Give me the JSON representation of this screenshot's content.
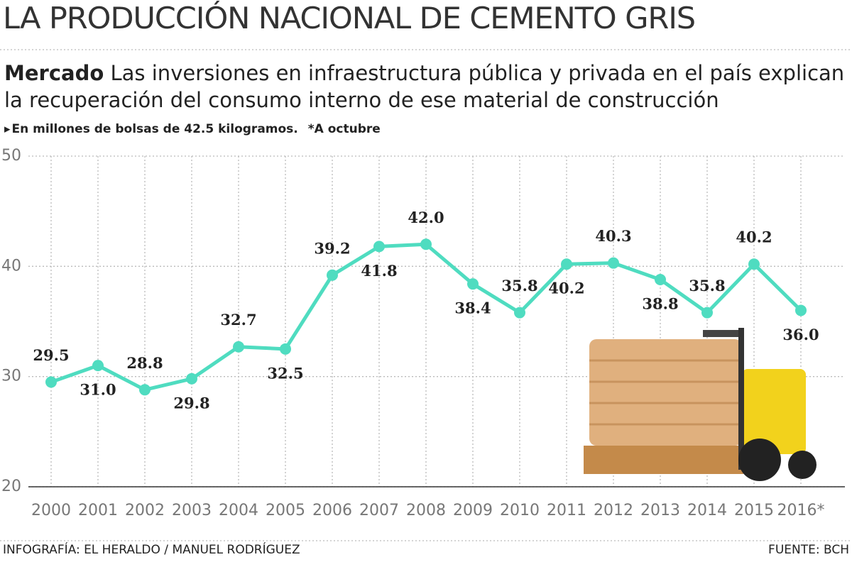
{
  "chart_data": {
    "type": "line",
    "title": "LA PRODUCCIÓN NACIONAL DE CEMENTO GRIS",
    "kicker": "Mercado",
    "subtitle": "Las inversiones en infraestructura pública y privada en el país explican la recuperación del consumo interno de ese material de construcción",
    "unit_note": "En millones de bolsas de 42.5 kilogramos.",
    "footnote": "*A octubre",
    "credit": "INFOGRAFÍA: EL HERALDO / MANUEL RODRÍGUEZ",
    "source": "FUENTE: BCH",
    "categories": [
      "2000",
      "2001",
      "2002",
      "2003",
      "2004",
      "2005",
      "2006",
      "2007",
      "2008",
      "2009",
      "2010",
      "2011",
      "2012",
      "2013",
      "2014",
      "2015",
      "2016*"
    ],
    "values": [
      29.5,
      31.0,
      28.8,
      29.8,
      32.7,
      32.5,
      39.2,
      41.8,
      42.0,
      38.4,
      35.8,
      40.2,
      40.3,
      38.8,
      35.8,
      40.2,
      36.0
    ],
    "value_labels": [
      "29.5",
      "31.0",
      "28.8",
      "29.8",
      "32.7",
      "32.5",
      "39.2",
      "41.8",
      "42.0",
      "38.4",
      "35.8",
      "40.2",
      "40.3",
      "38.8",
      "35.8",
      "40.2",
      "36.0"
    ],
    "color": "#4fdcc0",
    "ylim": [
      20,
      50
    ],
    "yticks": [
      20,
      30,
      40,
      50
    ],
    "grid": true
  }
}
